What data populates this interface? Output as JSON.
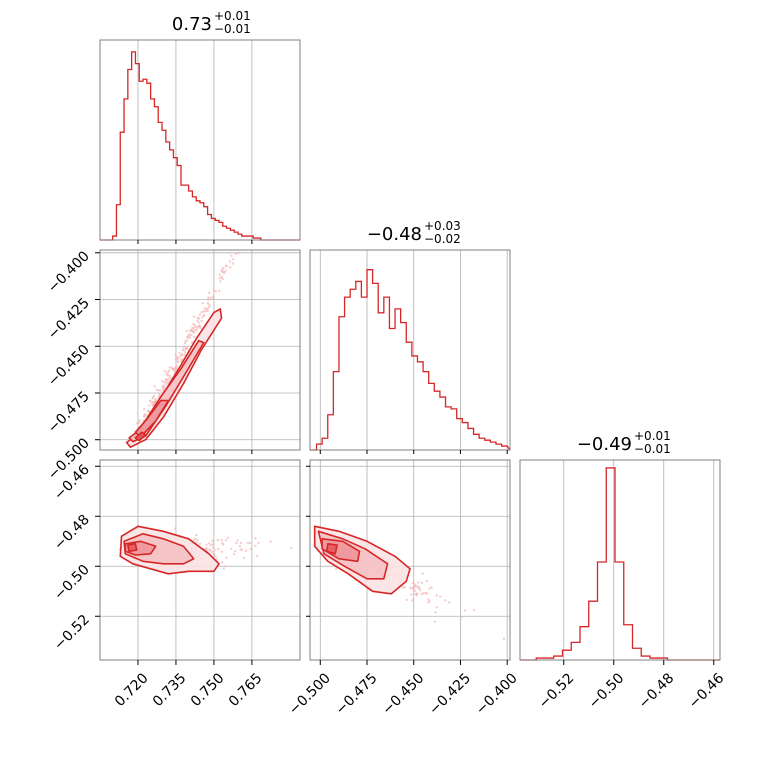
{
  "chart_data": {
    "type": "corner",
    "color": "#d62728",
    "grid": true,
    "parameters": [
      {
        "range": [
          0.705,
          0.784
        ]
      },
      {
        "range": [
          -0.5055,
          -0.3985
        ]
      },
      {
        "range": [
          -0.5375,
          -0.4575
        ]
      }
    ],
    "titles": [
      {
        "median": "0.73",
        "plus": "+0.01",
        "minus": "−0.01"
      },
      {
        "median": "−0.48",
        "plus": "+0.03",
        "minus": "−0.02"
      },
      {
        "median": "−0.49",
        "plus": "+0.01",
        "minus": "−0.01"
      }
    ],
    "ticks": [
      {
        "values": [
          0.72,
          0.735,
          0.75,
          0.765
        ],
        "labels": [
          "0.720",
          "0.735",
          "0.750",
          "0.765"
        ]
      },
      {
        "values": [
          -0.5,
          -0.475,
          -0.45,
          -0.425,
          -0.4
        ],
        "labels": [
          "−0.500",
          "−0.475",
          "−0.450",
          "−0.425",
          "−0.400"
        ]
      },
      {
        "values": [
          -0.52,
          -0.5,
          -0.48,
          -0.46
        ],
        "labels": [
          "−0.52",
          "−0.50",
          "−0.48",
          "−0.46"
        ]
      }
    ],
    "histograms": [
      {
        "bins": [
          0.71,
          0.7115,
          0.713,
          0.7145,
          0.716,
          0.7175,
          0.719,
          0.7205,
          0.722,
          0.7235,
          0.725,
          0.7265,
          0.728,
          0.7295,
          0.731,
          0.7325,
          0.734,
          0.7355,
          0.737,
          0.7385,
          0.74,
          0.7415,
          0.743,
          0.7445,
          0.746,
          0.7475,
          0.749,
          0.7505,
          0.752,
          0.7535,
          0.755,
          0.7565,
          0.758,
          0.7595,
          0.761,
          0.7625,
          0.764,
          0.7655,
          0.767,
          0.7685,
          0.77
        ],
        "counts": [
          0.02,
          0.18,
          0.55,
          0.72,
          0.87,
          0.96,
          0.9,
          0.81,
          0.82,
          0.8,
          0.72,
          0.68,
          0.6,
          0.56,
          0.5,
          0.46,
          0.42,
          0.38,
          0.28,
          0.28,
          0.25,
          0.22,
          0.2,
          0.19,
          0.17,
          0.13,
          0.11,
          0.1,
          0.09,
          0.07,
          0.06,
          0.05,
          0.04,
          0.03,
          0.02,
          0.02,
          0.02,
          0.01,
          0.01,
          0.0
        ]
      },
      {
        "bins": [
          -0.502,
          -0.499,
          -0.496,
          -0.493,
          -0.49,
          -0.487,
          -0.484,
          -0.481,
          -0.478,
          -0.475,
          -0.472,
          -0.469,
          -0.466,
          -0.463,
          -0.46,
          -0.457,
          -0.454,
          -0.451,
          -0.448,
          -0.445,
          -0.442,
          -0.439,
          -0.436,
          -0.433,
          -0.43,
          -0.427,
          -0.424,
          -0.421,
          -0.418,
          -0.415,
          -0.412,
          -0.409,
          -0.406,
          -0.403,
          -0.4
        ],
        "counts": [
          0.03,
          0.06,
          0.18,
          0.4,
          0.68,
          0.78,
          0.82,
          0.86,
          0.78,
          0.92,
          0.85,
          0.7,
          0.78,
          0.62,
          0.72,
          0.65,
          0.55,
          0.48,
          0.45,
          0.4,
          0.34,
          0.3,
          0.27,
          0.22,
          0.21,
          0.16,
          0.14,
          0.11,
          0.08,
          0.06,
          0.05,
          0.04,
          0.03,
          0.02
        ]
      },
      {
        "bins": [
          -0.531,
          -0.5275,
          -0.524,
          -0.5205,
          -0.517,
          -0.5135,
          -0.51,
          -0.5065,
          -0.503,
          -0.4995,
          -0.496,
          -0.4925,
          -0.489,
          -0.4855,
          -0.482,
          -0.4785,
          -0.475,
          -0.4715,
          -0.468
        ],
        "counts": [
          0.01,
          0.01,
          0.02,
          0.05,
          0.09,
          0.17,
          0.3,
          0.5,
          0.98,
          0.5,
          0.18,
          0.06,
          0.02,
          0.01,
          0.01,
          0.0,
          0.0,
          0.0
        ]
      }
    ],
    "pairs": [
      {
        "x": 0,
        "y": 1,
        "center": [
          0.7205,
          -0.4962
        ],
        "direction": [
          0.026,
          0.066
        ],
        "spread": 0.12,
        "contours": [
          [
            [
              0.7155,
              -0.5015
            ],
            [
              0.7185,
              -0.4985
            ],
            [
              0.728,
              -0.48
            ],
            [
              0.737,
              -0.46
            ],
            [
              0.743,
              -0.446
            ],
            [
              0.75,
              -0.432
            ],
            [
              0.7525,
              -0.43
            ],
            [
              0.753,
              -0.435
            ],
            [
              0.745,
              -0.452
            ],
            [
              0.738,
              -0.47
            ],
            [
              0.73,
              -0.488
            ],
            [
              0.723,
              -0.5
            ],
            [
              0.717,
              -0.504
            ]
          ],
          [
            [
              0.7165,
              -0.499
            ],
            [
              0.7205,
              -0.495
            ],
            [
              0.729,
              -0.477
            ],
            [
              0.737,
              -0.462
            ],
            [
              0.744,
              -0.447
            ],
            [
              0.746,
              -0.448
            ],
            [
              0.739,
              -0.464
            ],
            [
              0.731,
              -0.482
            ],
            [
              0.723,
              -0.498
            ],
            [
              0.718,
              -0.501
            ]
          ],
          [
            [
              0.719,
              -0.496
            ],
            [
              0.7235,
              -0.489
            ],
            [
              0.729,
              -0.479
            ],
            [
              0.732,
              -0.479
            ],
            [
              0.727,
              -0.49
            ],
            [
              0.721,
              -0.4985
            ]
          ],
          [
            [
              0.719,
              -0.499
            ],
            [
              0.7215,
              -0.496
            ],
            [
              0.723,
              -0.4975
            ],
            [
              0.7205,
              -0.5005
            ]
          ]
        ]
      },
      {
        "x": 0,
        "y": 2,
        "center": [
          0.725,
          -0.494
        ],
        "direction": [
          0.02,
          0.0
        ],
        "spread": 0.45,
        "contours": [
          [
            [
              0.7135,
              -0.488
            ],
            [
              0.72,
              -0.484
            ],
            [
              0.73,
              -0.486
            ],
            [
              0.74,
              -0.489
            ],
            [
              0.748,
              -0.495
            ],
            [
              0.752,
              -0.499
            ],
            [
              0.75,
              -0.502
            ],
            [
              0.74,
              -0.502
            ],
            [
              0.732,
              -0.503
            ],
            [
              0.725,
              -0.501
            ],
            [
              0.718,
              -0.499
            ],
            [
              0.713,
              -0.496
            ]
          ],
          [
            [
              0.7145,
              -0.49
            ],
            [
              0.722,
              -0.487
            ],
            [
              0.73,
              -0.489
            ],
            [
              0.738,
              -0.492
            ],
            [
              0.742,
              -0.497
            ],
            [
              0.738,
              -0.499
            ],
            [
              0.73,
              -0.499
            ],
            [
              0.722,
              -0.498
            ],
            [
              0.715,
              -0.495
            ]
          ],
          [
            [
              0.715,
              -0.491
            ],
            [
              0.721,
              -0.49
            ],
            [
              0.727,
              -0.492
            ],
            [
              0.725,
              -0.495
            ],
            [
              0.719,
              -0.4955
            ],
            [
              0.715,
              -0.494
            ]
          ],
          [
            [
              0.716,
              -0.4915
            ],
            [
              0.719,
              -0.491
            ],
            [
              0.7195,
              -0.4935
            ],
            [
              0.7165,
              -0.494
            ]
          ]
        ]
      },
      {
        "x": 1,
        "y": 2,
        "center": [
          -0.487,
          -0.494
        ],
        "direction": [
          0.025,
          -0.01
        ],
        "spread": 0.35,
        "contours": [
          [
            [
              -0.503,
              -0.484
            ],
            [
              -0.49,
              -0.486
            ],
            [
              -0.475,
              -0.49
            ],
            [
              -0.46,
              -0.496
            ],
            [
              -0.452,
              -0.501
            ],
            [
              -0.454,
              -0.506
            ],
            [
              -0.462,
              -0.511
            ],
            [
              -0.472,
              -0.51
            ],
            [
              -0.485,
              -0.503
            ],
            [
              -0.496,
              -0.498
            ],
            [
              -0.503,
              -0.492
            ]
          ],
          [
            [
              -0.501,
              -0.486
            ],
            [
              -0.488,
              -0.489
            ],
            [
              -0.476,
              -0.493
            ],
            [
              -0.464,
              -0.499
            ],
            [
              -0.466,
              -0.505
            ],
            [
              -0.475,
              -0.505
            ],
            [
              -0.487,
              -0.5
            ],
            [
              -0.498,
              -0.495
            ]
          ],
          [
            [
              -0.499,
              -0.489
            ],
            [
              -0.488,
              -0.49
            ],
            [
              -0.479,
              -0.494
            ],
            [
              -0.48,
              -0.498
            ],
            [
              -0.49,
              -0.497
            ],
            [
              -0.499,
              -0.493
            ]
          ],
          [
            [
              -0.496,
              -0.491
            ],
            [
              -0.491,
              -0.4915
            ],
            [
              -0.492,
              -0.495
            ],
            [
              -0.4965,
              -0.494
            ]
          ]
        ]
      }
    ]
  }
}
